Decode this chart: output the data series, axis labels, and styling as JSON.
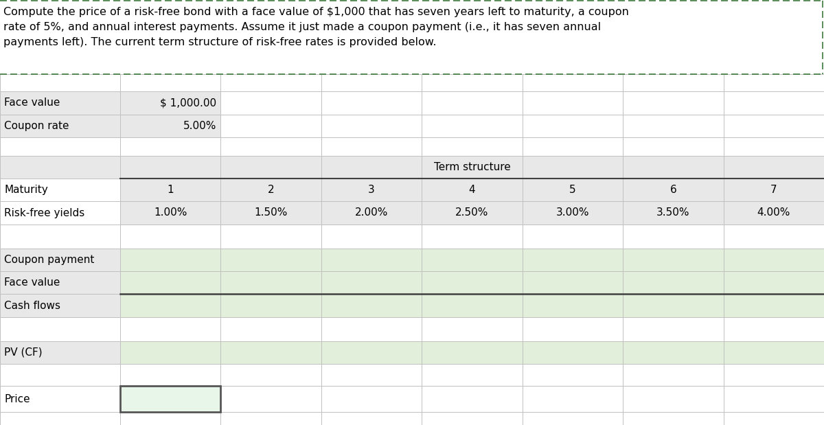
{
  "title_text": "Compute the price of a risk-free bond with a face value of $1,000 that has seven years left to maturity, a coupon\nrate of 5%, and annual interest payments. Assume it just made a coupon payment (i.e., it has seven annual\npayments left). The current term structure of risk-free rates is provided below.",
  "face_value_label": "Face value",
  "face_value_value": "$ 1,000.00",
  "coupon_rate_label": "Coupon rate",
  "coupon_rate_value": "5.00%",
  "term_structure_label": "Term structure",
  "maturity_label": "Maturity",
  "maturities": [
    "1",
    "2",
    "3",
    "4",
    "5",
    "6",
    "7"
  ],
  "rf_yields_label": "Risk-free yields",
  "rf_yields": [
    "1.00%",
    "1.50%",
    "2.00%",
    "2.50%",
    "3.00%",
    "3.50%",
    "4.00%"
  ],
  "coupon_payment_label": "Coupon payment",
  "face_value_row_label": "Face value",
  "cash_flows_label": "Cash flows",
  "pv_cf_label": "PV (CF)",
  "price_label": "Price",
  "bg_color": "#ffffff",
  "light_gray_bg": "#e8e8e8",
  "medium_gray_bg": "#e0e0e0",
  "term_gray_bg": "#e8e8e8",
  "green_bg": "#e2efda",
  "title_border_color": "#3d7a3d",
  "grid_color": "#c0c0c0",
  "thick_line_color": "#404040",
  "price_border_color": "#555555",
  "font_size": 11,
  "title_font_size": 11.5
}
